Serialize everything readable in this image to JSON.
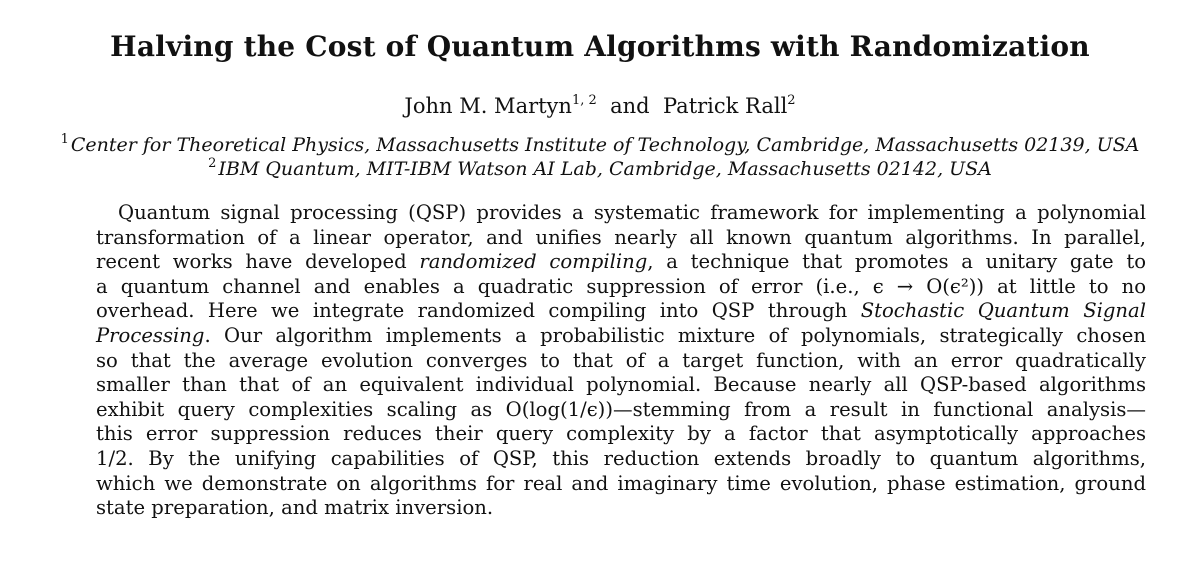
{
  "title": "Halving the Cost of Quantum Algorithms with Randomization",
  "authors": {
    "author1_name": "John M. Martyn",
    "author1_affil": "1, 2",
    "conjunction": "and",
    "author2_name": "Patrick Rall",
    "author2_affil": "2"
  },
  "affiliations": [
    {
      "mark": "1",
      "text": "Center for Theoretical Physics, Massachusetts Institute of Technology, Cambridge, Massachusetts 02139, USA"
    },
    {
      "mark": "2",
      "text": "IBM Quantum, MIT-IBM Watson AI Lab, Cambridge, Massachusetts 02142, USA"
    }
  ],
  "abstract": {
    "l1": "Quantum signal processing (QSP) provides a systematic framework for implementing a polynomial",
    "l2": "transformation of a linear operator, and unifies nearly all known quantum algorithms. In parallel,",
    "l3a": "recent works have developed",
    "l3b": "randomized compiling",
    "l3c": ", a technique that promotes a unitary gate to",
    "l4": "a quantum channel and enables a quadratic suppression of error (i.e., ϵ → O(ϵ²)) at little to no",
    "l5a": "overhead. Here we integrate randomized compiling into QSP through",
    "l5b": "Stochastic Quantum Signal",
    "l6a": "Processing",
    "l6b": ". Our algorithm implements a probabilistic mixture of polynomials, strategically chosen",
    "l7": "so that the average evolution converges to that of a target function, with an error quadratically",
    "l8": "smaller than that of an equivalent individual polynomial. Because nearly all QSP-based algorithms",
    "l9": "exhibit query complexities scaling as O(log(1/ϵ))—stemming from a result in functional analysis—",
    "l10": "this error suppression reduces their query complexity by a factor that asymptotically approaches",
    "l11": "1/2. By the unifying capabilities of QSP, this reduction extends broadly to quantum algorithms,",
    "l12": "which we demonstrate on algorithms for real and imaginary time evolution, phase estimation, ground",
    "l13": "state preparation, and matrix inversion."
  }
}
